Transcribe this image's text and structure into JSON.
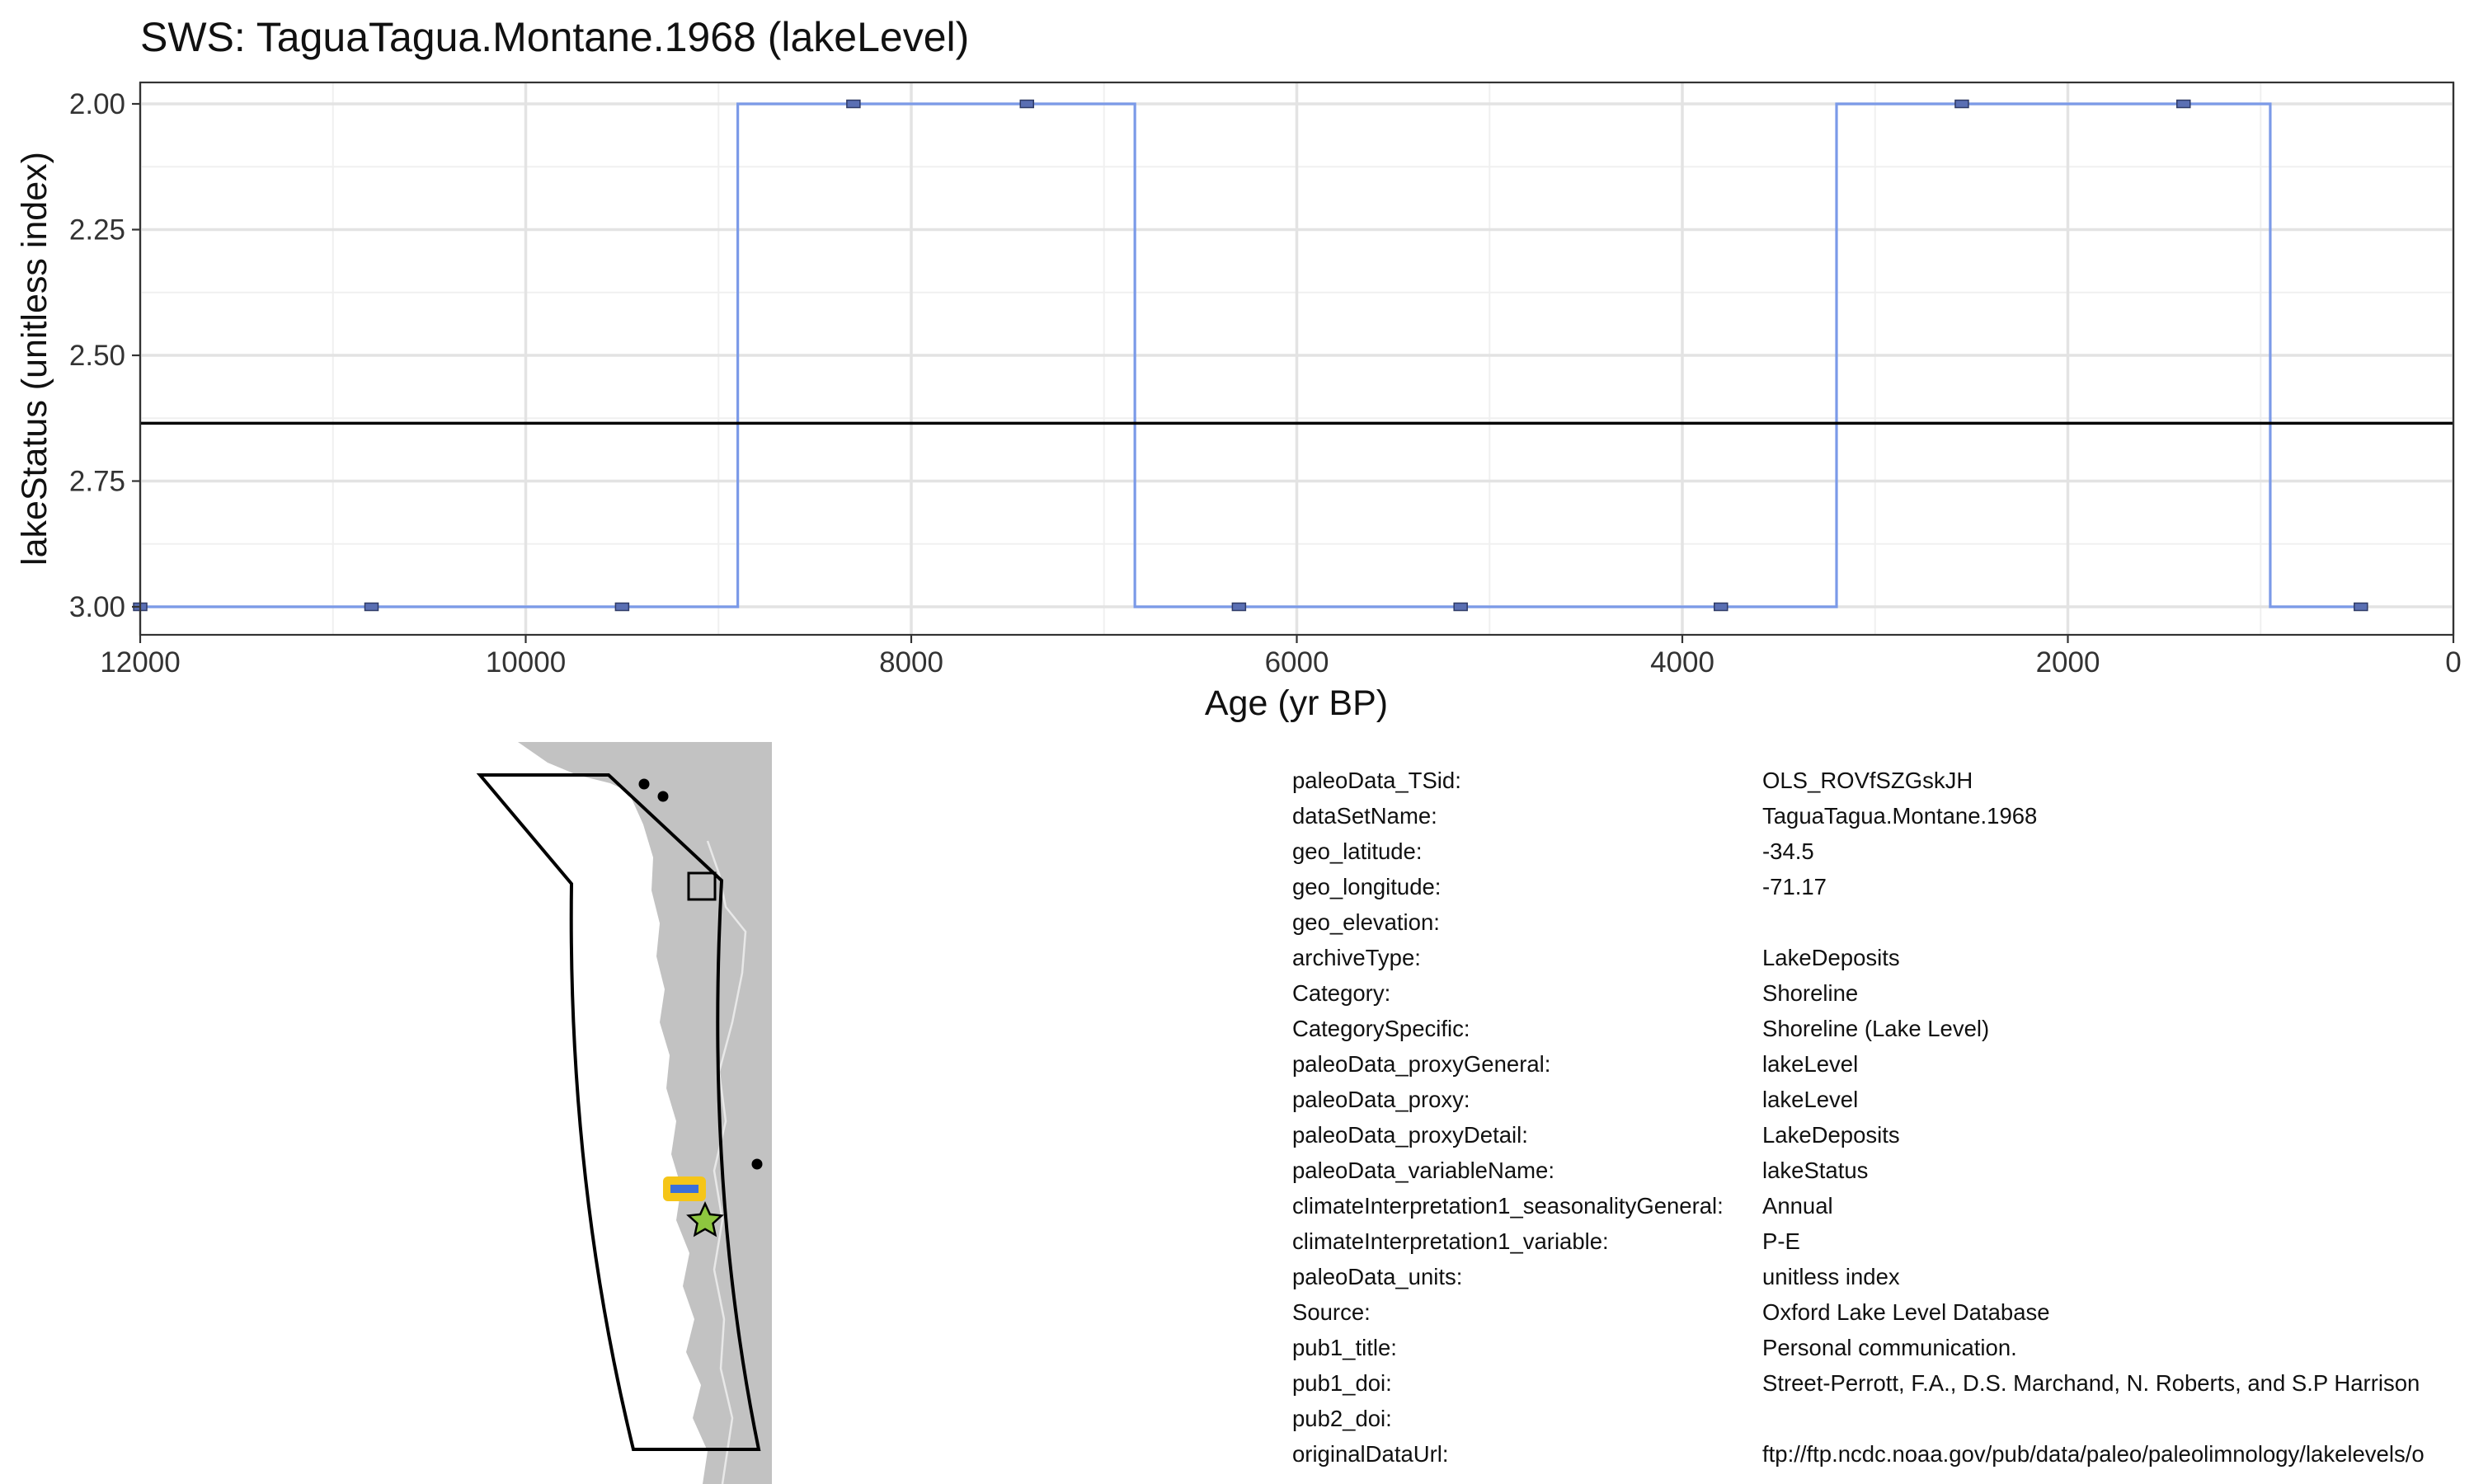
{
  "chart_data": {
    "type": "line",
    "title": "SWS: TaguaTagua.Montane.1968 (lakeLevel)",
    "xlabel": "Age (yr BP)",
    "ylabel": "lakeStatus (unitless index)",
    "xlim": [
      12000,
      0
    ],
    "x_reversed": true,
    "ylim": [
      3.0,
      2.0
    ],
    "y_reversed": true,
    "x_ticks": [
      12000,
      10000,
      8000,
      6000,
      4000,
      2000,
      0
    ],
    "y_ticks": [
      "2.00",
      "2.25",
      "2.50",
      "2.75",
      "3.00"
    ],
    "y_tick_values": [
      2.0,
      2.25,
      2.5,
      2.75,
      3.0
    ],
    "grid": true,
    "series": [
      {
        "line_style": "step",
        "color": "#7b9ae8",
        "x": [
          12000,
          10800,
          9500,
          8900,
          8300,
          7400,
          6840,
          6300,
          5150,
          3800,
          3200,
          2550,
          1400,
          950,
          480
        ],
        "values": [
          3,
          3,
          3,
          2,
          2,
          2,
          3,
          3,
          3,
          3,
          2,
          2,
          2,
          3,
          3
        ]
      }
    ],
    "markers": {
      "color": "#5a6fb3",
      "x": [
        12000,
        10800,
        9500,
        8300,
        7400,
        6300,
        5150,
        3800,
        2550,
        1400,
        480
      ],
      "values": [
        3,
        3,
        3,
        2,
        2,
        3,
        3,
        3,
        2,
        2,
        3
      ]
    },
    "hline": {
      "value": 2.635,
      "color": "#000000"
    }
  },
  "map": {
    "land_color": "#c2c2c2",
    "border_color": "#e8e8e8",
    "ocean_color": "#ffffff",
    "site_marker": "star-icon",
    "site_color": "#8dc63f",
    "highlight_color": "#f5c518",
    "highlight_inner_color": "#3b6fd8"
  },
  "metadata": [
    {
      "key": "paleoData_TSid:",
      "value": "OLS_ROVfSZGskJH"
    },
    {
      "key": "dataSetName:",
      "value": "TaguaTagua.Montane.1968"
    },
    {
      "key": "geo_latitude:",
      "value": "-34.5"
    },
    {
      "key": "geo_longitude:",
      "value": "-71.17"
    },
    {
      "key": "geo_elevation:",
      "value": ""
    },
    {
      "key": "archiveType:",
      "value": "LakeDeposits"
    },
    {
      "key": "Category:",
      "value": "Shoreline"
    },
    {
      "key": "CategorySpecific:",
      "value": "Shoreline (Lake Level)"
    },
    {
      "key": "paleoData_proxyGeneral:",
      "value": "lakeLevel"
    },
    {
      "key": "paleoData_proxy:",
      "value": "lakeLevel"
    },
    {
      "key": "paleoData_proxyDetail:",
      "value": "LakeDeposits"
    },
    {
      "key": "paleoData_variableName:",
      "value": "lakeStatus"
    },
    {
      "key": "climateInterpretation1_seasonalityGeneral:",
      "value": "Annual"
    },
    {
      "key": "climateInterpretation1_variable:",
      "value": "P-E"
    },
    {
      "key": "paleoData_units:",
      "value": "unitless index"
    },
    {
      "key": "Source:",
      "value": "Oxford Lake Level Database"
    },
    {
      "key": "pub1_title:",
      "value": "Personal communication."
    },
    {
      "key": "pub1_doi:",
      "value": "Street-Perrott, F.A., D.S. Marchand, N. Roberts, and S.P Harrison"
    },
    {
      "key": "pub2_doi:",
      "value": ""
    },
    {
      "key": "originalDataUrl:",
      "value": "ftp://ftp.ncdc.noaa.gov/pub/data/paleo/paleolimnology/lakelevels/o"
    }
  ]
}
